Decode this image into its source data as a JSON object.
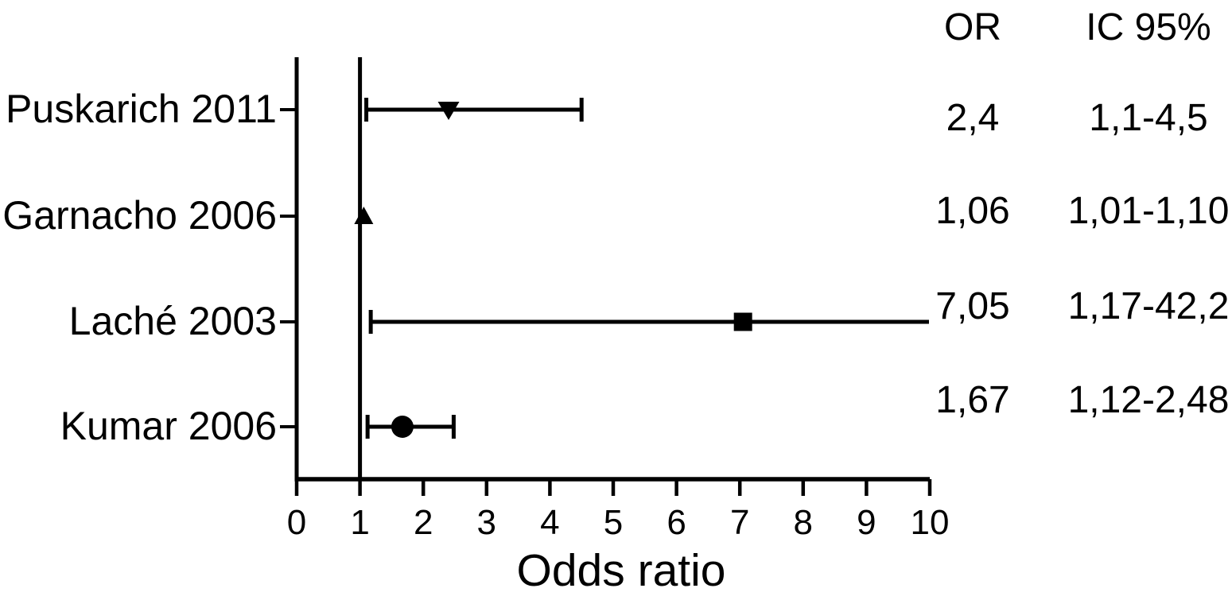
{
  "chart_data": {
    "type": "scatter",
    "variant": "forest-plot",
    "title": "",
    "xlabel": "Odds ratio",
    "ylabel": "",
    "xlim": [
      0,
      10
    ],
    "x_ticks": [
      0,
      1,
      2,
      3,
      4,
      5,
      6,
      7,
      8,
      9,
      10
    ],
    "reference_line_x": 1,
    "grid": false,
    "legend": "none",
    "columns": {
      "or_header": "OR",
      "ci_header": "IC 95%"
    },
    "studies": [
      {
        "label": "Puskarich 2011",
        "or": 2.4,
        "ci_low": 1.1,
        "ci_high": 4.5,
        "or_text": "2,4",
        "ci_text": "1,1-4,5",
        "marker": "triangle-down",
        "cap_left": true,
        "cap_right": true,
        "ci_clipped_right": false
      },
      {
        "label": "Garnacho 2006",
        "or": 1.06,
        "ci_low": 1.01,
        "ci_high": 1.1,
        "or_text": "1,06",
        "ci_text": "1,01-1,10",
        "marker": "triangle-up",
        "cap_left": false,
        "cap_right": false,
        "ci_clipped_right": false
      },
      {
        "label": "Laché 2003",
        "or": 7.05,
        "ci_low": 1.17,
        "ci_high": 42.2,
        "or_text": "7,05",
        "ci_text": "1,17-42,2",
        "marker": "square",
        "cap_left": true,
        "cap_right": false,
        "ci_clipped_right": true
      },
      {
        "label": "Kumar 2006",
        "or": 1.67,
        "ci_low": 1.12,
        "ci_high": 2.48,
        "or_text": "1,67",
        "ci_text": "1,12-2,48",
        "marker": "circle",
        "cap_left": true,
        "cap_right": true,
        "ci_clipped_right": false
      }
    ],
    "colors": {
      "ink": "#000000",
      "background": "#ffffff"
    }
  }
}
